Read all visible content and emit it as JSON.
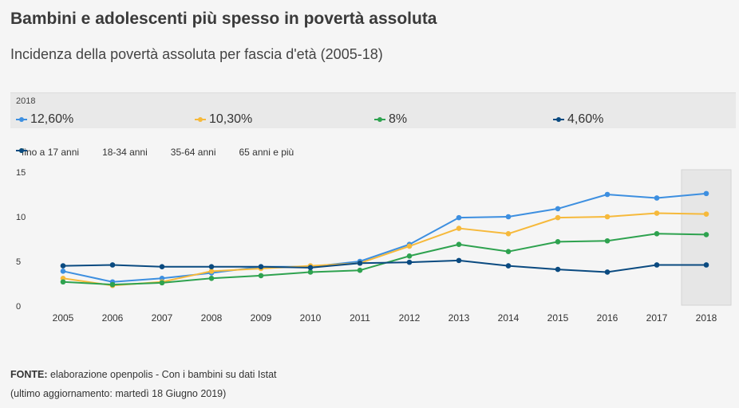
{
  "title": "Bambini e adolescenti più spesso in povertà assoluta",
  "subtitle": "Incidenza della povertà assoluta per fascia d'età (2005-18)",
  "summary": {
    "year": "2018",
    "items": [
      {
        "value": "12,60%",
        "color": "#3d8fe0"
      },
      {
        "value": "10,30%",
        "color": "#f6b93b"
      },
      {
        "value": "8%",
        "color": "#2ea24f"
      },
      {
        "value": "4,60%",
        "color": "#0a4a80"
      }
    ]
  },
  "footer": {
    "source_label": "FONTE:",
    "source_text": " elaborazione openpolis - Con i bambini su dati Istat",
    "updated": "(ultimo aggiornamento: martedì 18 Giugno 2019)"
  },
  "chart_data": {
    "type": "line",
    "x": [
      "2005",
      "2006",
      "2007",
      "2008",
      "2009",
      "2010",
      "2011",
      "2012",
      "2013",
      "2014",
      "2015",
      "2016",
      "2017",
      "2018"
    ],
    "ylim": [
      0,
      15
    ],
    "yticks": [
      0,
      5,
      10,
      15
    ],
    "highlight": "2018",
    "legend_position": "top-left",
    "series": [
      {
        "name": "fino a 17 anni",
        "color": "#3d8fe0",
        "values": [
          3.9,
          2.7,
          3.1,
          3.7,
          4.4,
          4.4,
          5.0,
          6.9,
          9.9,
          10.0,
          10.9,
          12.5,
          12.1,
          12.6
        ]
      },
      {
        "name": "18-34 anni",
        "color": "#f6b93b",
        "values": [
          3.1,
          2.3,
          2.7,
          3.9,
          4.2,
          4.5,
          4.8,
          6.7,
          8.7,
          8.1,
          9.9,
          10.0,
          10.4,
          10.3
        ]
      },
      {
        "name": "35-64 anni",
        "color": "#2ea24f",
        "values": [
          2.7,
          2.4,
          2.6,
          3.1,
          3.4,
          3.8,
          4.0,
          5.6,
          6.9,
          6.1,
          7.2,
          7.3,
          8.1,
          8.0
        ]
      },
      {
        "name": "65 anni e più",
        "color": "#0a4a80",
        "values": [
          4.5,
          4.6,
          4.4,
          4.4,
          4.4,
          4.3,
          4.8,
          4.9,
          5.1,
          4.5,
          4.1,
          3.8,
          4.6,
          4.6
        ]
      }
    ]
  }
}
